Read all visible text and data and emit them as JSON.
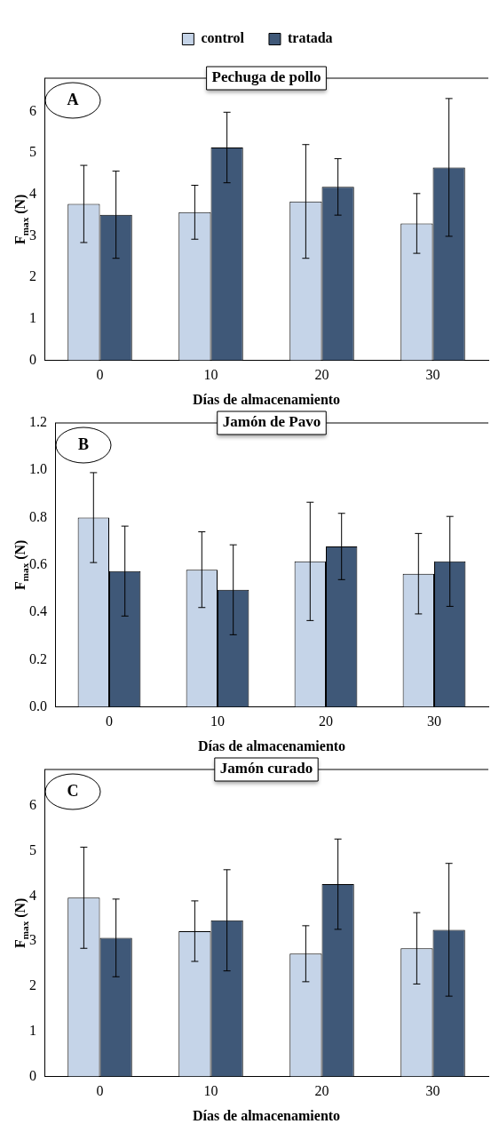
{
  "chart_data": [
    {
      "type": "bar",
      "title": "Pechuga de pollo",
      "xlabel": "Días de almacenamiento",
      "ylabel": "F$_{max}$ (N)",
      "annotations": [
        "A"
      ],
      "categories": [
        "0",
        "10",
        "20",
        "30"
      ],
      "ylim": [
        0,
        6.8
      ],
      "yticks": [
        0,
        1,
        2,
        3,
        4,
        5,
        6
      ],
      "grid": false,
      "legend": "top",
      "series": [
        {
          "name": "control",
          "color": "#c5d4e8",
          "values": [
            3.77,
            3.57,
            3.83,
            3.3
          ],
          "errors": [
            0.93,
            0.65,
            1.37,
            0.72
          ]
        },
        {
          "name": "tratada",
          "color": "#3f5878",
          "values": [
            3.51,
            5.13,
            4.18,
            4.65
          ],
          "errors": [
            1.05,
            0.85,
            0.68,
            1.66
          ]
        }
      ]
    },
    {
      "type": "bar",
      "title": "Jamón de Pavo",
      "xlabel": "Días de almacenamiento",
      "ylabel": "F$_{max}$ (N)",
      "annotations": [
        "B"
      ],
      "categories": [
        "0",
        "10",
        "20",
        "30"
      ],
      "ylim": [
        0,
        1.2
      ],
      "yticks": [
        {
          "value": 0,
          "label": "0.0"
        },
        0.2,
        0.4,
        0.6,
        0.8,
        {
          "value": 1,
          "label": "1.0"
        },
        1.2
      ],
      "grid": false,
      "series": [
        {
          "color": "#c5d4e8",
          "values": [
            0.8,
            0.58,
            0.615,
            0.563
          ],
          "errors": [
            0.19,
            0.16,
            0.25,
            0.17
          ]
        },
        {
          "color": "#3f5878",
          "values": [
            0.574,
            0.495,
            0.678,
            0.615
          ],
          "errors": [
            0.19,
            0.19,
            0.14,
            0.19
          ]
        }
      ]
    },
    {
      "type": "bar",
      "title": "Jamón curado",
      "xlabel": "Días de almacenamiento",
      "ylabel": "F$_{max}$ (N)",
      "annotations": [
        "C"
      ],
      "categories": [
        "0",
        "10",
        "20",
        "30"
      ],
      "ylim": [
        0,
        6.8
      ],
      "yticks": [
        0,
        1,
        2,
        3,
        4,
        5,
        6
      ],
      "grid": false,
      "series": [
        {
          "color": "#c5d4e8",
          "values": [
            3.96,
            3.22,
            2.72,
            2.84
          ],
          "errors": [
            1.12,
            0.67,
            0.62,
            0.79
          ]
        },
        {
          "color": "#3f5878",
          "values": [
            3.07,
            3.46,
            4.26,
            3.25
          ],
          "errors": [
            0.86,
            1.12,
            1.0,
            1.47
          ]
        }
      ]
    }
  ]
}
